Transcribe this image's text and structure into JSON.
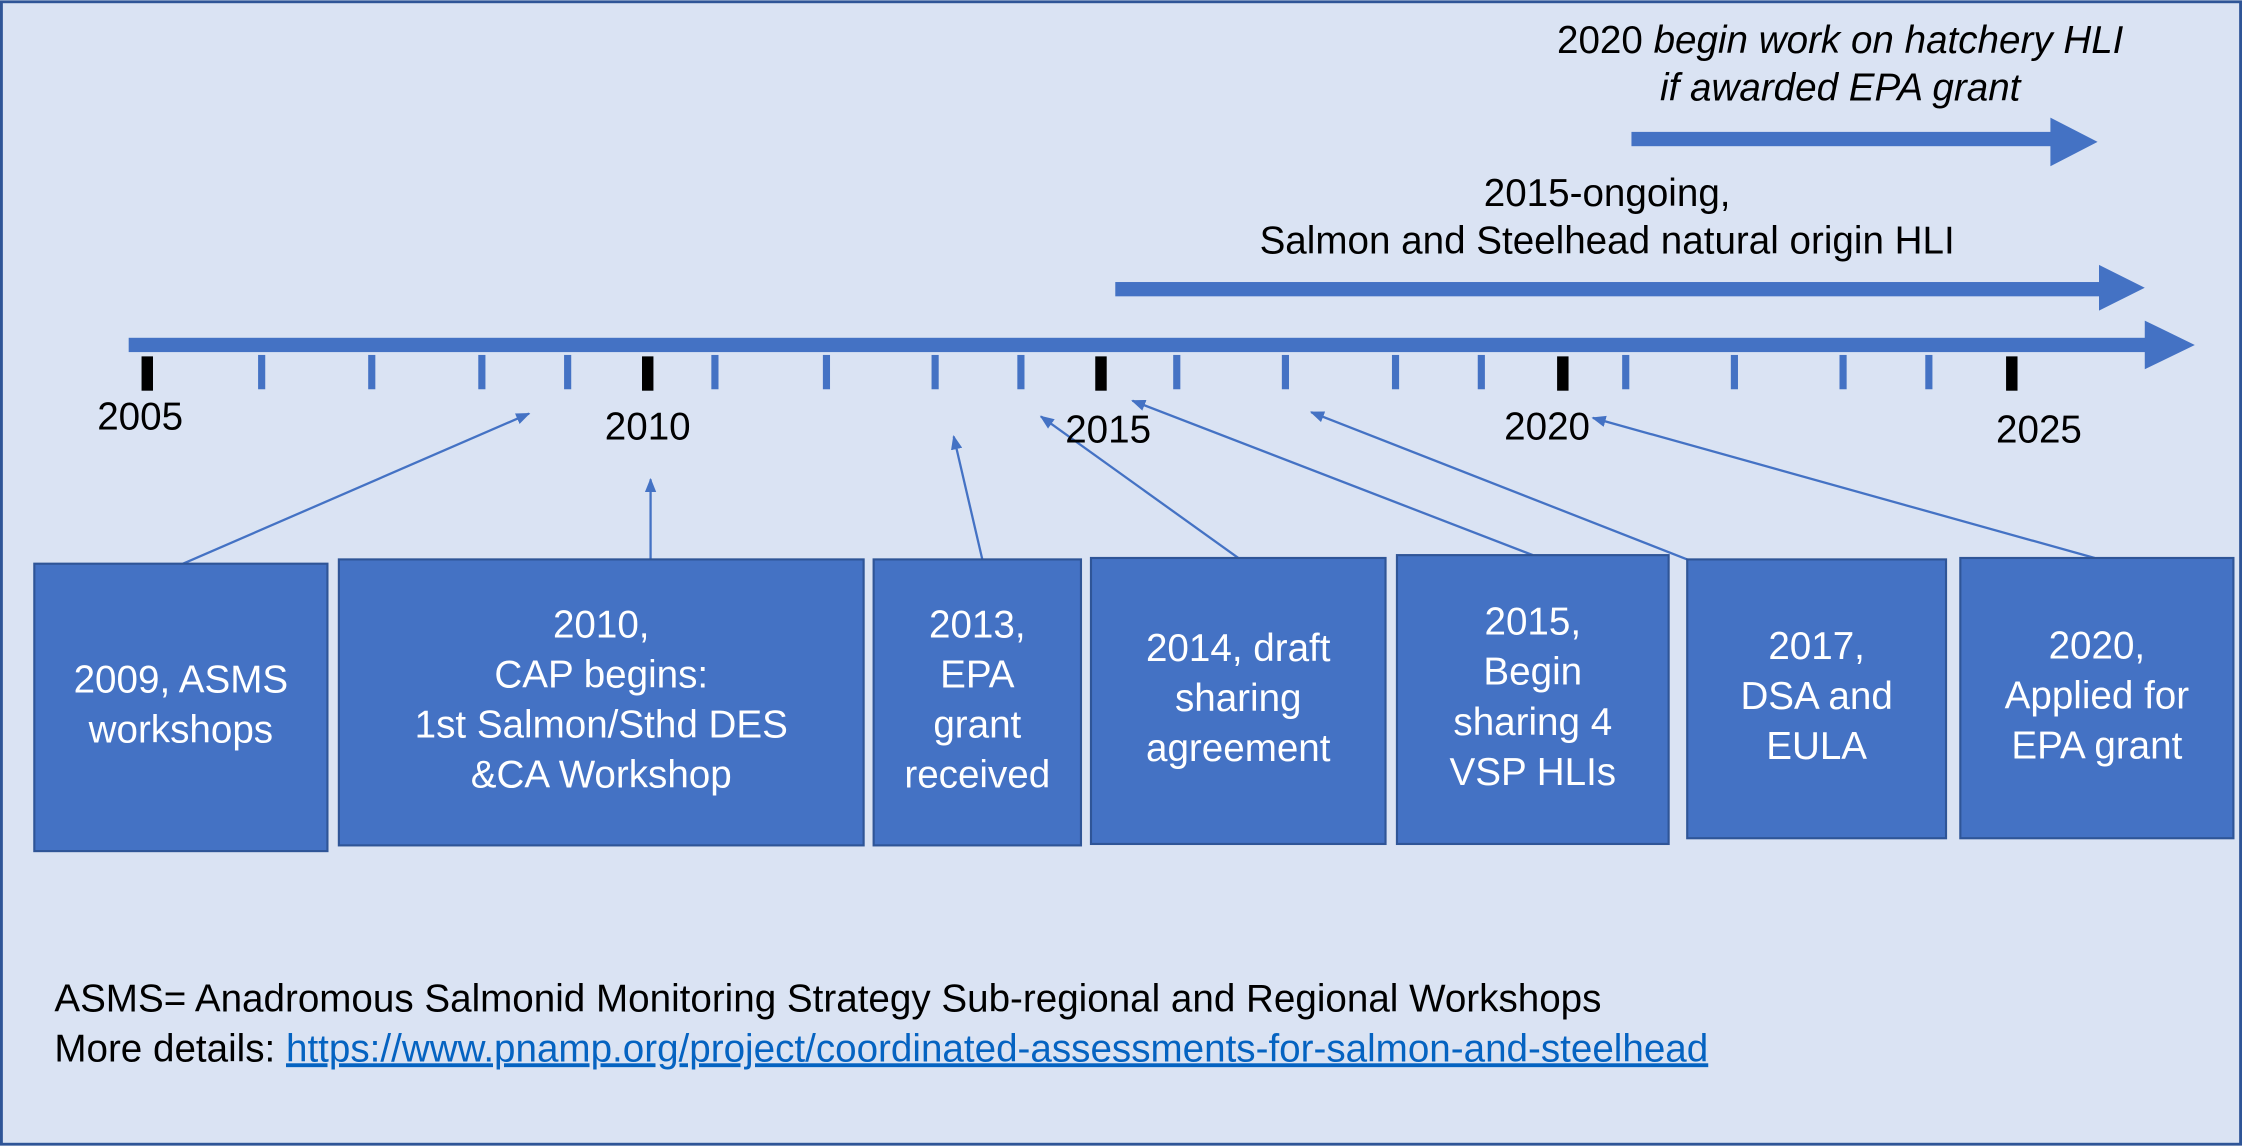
{
  "timeline": {
    "years": [
      "2005",
      "2010",
      "2015",
      "2020",
      "2025"
    ],
    "spans": [
      {
        "lines": [
          {
            "year": "2020",
            "text": "begin work on hatchery HLI"
          },
          {
            "text": "if awarded EPA grant"
          }
        ]
      },
      {
        "lines": [
          {
            "text": "2015-ongoing,"
          },
          {
            "text": "Salmon and Steelhead natural origin HLI"
          }
        ]
      }
    ],
    "events": [
      {
        "lines": [
          "2009, ASMS",
          "workshops"
        ]
      },
      {
        "lines": [
          "2010,",
          "CAP begins:",
          "1st Salmon/Sthd DES",
          "&CA Workshop"
        ]
      },
      {
        "lines": [
          "2013,",
          "EPA",
          "grant",
          "received"
        ]
      },
      {
        "lines": [
          "2014, draft",
          "sharing",
          "agreement"
        ]
      },
      {
        "lines": [
          "2015,",
          "Begin",
          "sharing 4",
          "VSP HLIs"
        ]
      },
      {
        "lines": [
          "2017,",
          "DSA and",
          "EULA"
        ]
      },
      {
        "lines": [
          "2020,",
          "Applied for",
          "EPA grant"
        ]
      }
    ]
  },
  "footer": {
    "definition": "ASMS= Anadromous Salmonid Monitoring Strategy Sub-regional and Regional Workshops",
    "details_label": "More details:",
    "link": "https://www.pnamp.org/project/coordinated-assessments-for-salmon-and-steelhead"
  }
}
